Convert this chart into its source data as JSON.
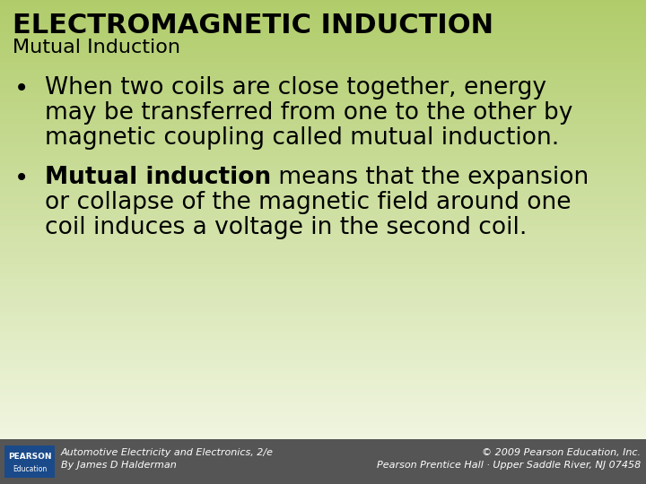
{
  "title": "ELECTROMAGNETIC INDUCTION",
  "subtitle": "Mutual Induction",
  "bullet1_line1": "When two coils are close together, energy",
  "bullet1_line2": "may be transferred from one to the other by",
  "bullet1_line3": "magnetic coupling called mutual induction.",
  "bullet2_bold": "Mutual induction",
  "bullet2_rest_line1": " means that the expansion",
  "bullet2_line2": "or collapse of the magnetic field around one",
  "bullet2_line3": "coil induces a voltage in the second coil.",
  "footer_left_line1": "Automotive Electricity and Electronics, 2/e",
  "footer_left_line2": "By James D Halderman",
  "footer_right_line1": "© 2009 Pearson Education, Inc.",
  "footer_right_line2": "Pearson Prentice Hall · Upper Saddle River, NJ 07458",
  "bg_color_top": "#b0cc6a",
  "bg_color_bottom": "#f0f5e0",
  "footer_bg_color": "#555555",
  "title_fontsize": 22,
  "subtitle_fontsize": 16,
  "body_fontsize": 19,
  "footer_fontsize": 8,
  "logo_text1": "PEARSON",
  "logo_text2": "Education",
  "logo_color": "#1a4a8a"
}
